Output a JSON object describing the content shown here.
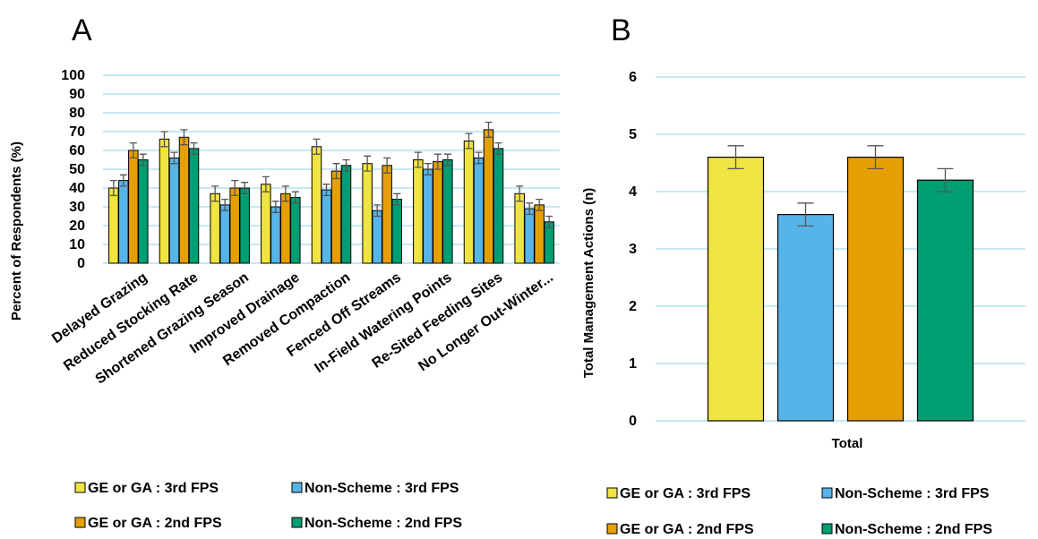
{
  "colors": {
    "ge_ga_3rd": "#f0e442",
    "non_scheme_3rd": "#56b4e9",
    "ge_ga_2nd": "#e69f00",
    "non_scheme_2nd": "#009e73",
    "gridline": "#8fd0ec"
  },
  "chart_data": [
    {
      "panel": "A",
      "type": "bar",
      "ylabel": "Percent of Respondents (%)",
      "xlabel": "",
      "ylim": [
        0,
        100
      ],
      "yticks": [
        "0",
        "10",
        "20",
        "30",
        "40",
        "50",
        "60",
        "70",
        "80",
        "90",
        "100"
      ],
      "grid": true,
      "legend_position": "bottom",
      "categories": [
        "Delayed Grazing",
        "Reduced Stocking Rate",
        "Shortened Grazing Season",
        "Improved Drainage",
        "Removed Compaction",
        "Fenced Off Streams",
        "In-Field Watering Points",
        "Re-Sited Feeding Sites",
        "No Longer Out-Winter..."
      ],
      "series": [
        {
          "name": "GE or GA : 3rd FPS",
          "color_key": "ge_ga_3rd",
          "values": [
            40,
            66,
            37,
            42,
            62,
            53,
            55,
            65,
            37
          ],
          "errors": [
            4,
            4,
            4,
            4,
            4,
            4,
            4,
            4,
            4
          ]
        },
        {
          "name": "Non-Scheme : 3rd FPS",
          "color_key": "non_scheme_3rd",
          "values": [
            44,
            56,
            31,
            30,
            39,
            28,
            50,
            56,
            29
          ],
          "errors": [
            3,
            3,
            3,
            3,
            3,
            3,
            3,
            3,
            3
          ]
        },
        {
          "name": "GE or GA : 2nd FPS",
          "color_key": "ge_ga_2nd",
          "values": [
            60,
            67,
            40,
            37,
            49,
            52,
            54,
            71,
            31
          ],
          "errors": [
            4,
            4,
            4,
            4,
            4,
            4,
            4,
            4,
            3
          ]
        },
        {
          "name": "Non-Scheme : 2nd FPS",
          "color_key": "non_scheme_2nd",
          "values": [
            55,
            61,
            40,
            35,
            52,
            34,
            55,
            61,
            22
          ],
          "errors": [
            3,
            3,
            3,
            3,
            3,
            3,
            3,
            3,
            3
          ]
        }
      ]
    },
    {
      "panel": "B",
      "type": "bar",
      "ylabel": "Total Management Actions (n)",
      "xlabel": "Total",
      "ylim": [
        0,
        6
      ],
      "yticks": [
        "0",
        "1",
        "2",
        "3",
        "4",
        "5",
        "6"
      ],
      "grid": true,
      "legend_position": "bottom",
      "categories": [
        "Total"
      ],
      "series": [
        {
          "name": "GE or GA : 3rd FPS",
          "color_key": "ge_ga_3rd",
          "values": [
            4.6
          ],
          "errors": [
            0.2
          ]
        },
        {
          "name": "Non-Scheme : 3rd FPS",
          "color_key": "non_scheme_3rd",
          "values": [
            3.6
          ],
          "errors": [
            0.2
          ]
        },
        {
          "name": "GE or GA : 2nd FPS",
          "color_key": "ge_ga_2nd",
          "values": [
            4.6
          ],
          "errors": [
            0.2
          ]
        },
        {
          "name": "Non-Scheme : 2nd FPS",
          "color_key": "non_scheme_2nd",
          "values": [
            4.2
          ],
          "errors": [
            0.2
          ]
        }
      ]
    }
  ]
}
